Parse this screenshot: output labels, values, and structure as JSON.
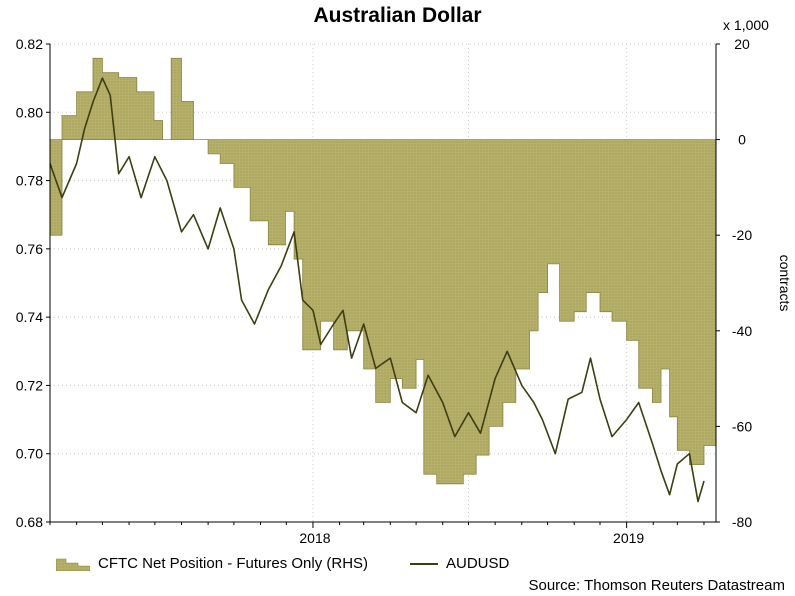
{
  "chart_data": {
    "title": "Australian Dollar",
    "left_axis": {
      "min": 0.68,
      "max": 0.82,
      "ticks": [
        "0.68",
        "0.70",
        "0.72",
        "0.74",
        "0.76",
        "0.78",
        "0.80",
        "0.82"
      ]
    },
    "right_axis": {
      "min": -80,
      "max": 20,
      "ticks": [
        "-80",
        "-60",
        "-40",
        "-20",
        "0",
        "20"
      ],
      "label": "contracts",
      "multiplier_label": "x 1,000"
    },
    "x_axis": {
      "type": "date",
      "start": "2017-03",
      "end": "2019-04",
      "tick_labels": [
        "2018",
        "2019"
      ]
    },
    "grid": "dotted",
    "legend_position": "bottom-left",
    "colors": {
      "area_fill": "#b5b06a",
      "area_stroke": "#8a8440",
      "line": "#3c3f12"
    },
    "series": [
      {
        "name": "CFTC Net Position - Futures Only (RHS)",
        "type": "area",
        "axis": "right",
        "points": [
          [
            "2017-03-01",
            0
          ],
          [
            "2017-03-01",
            -20
          ],
          [
            "2017-03-15",
            5
          ],
          [
            "2017-04-01",
            10
          ],
          [
            "2017-04-20",
            17
          ],
          [
            "2017-05-01",
            14
          ],
          [
            "2017-05-20",
            13
          ],
          [
            "2017-06-10",
            10
          ],
          [
            "2017-06-30",
            4
          ],
          [
            "2017-07-10",
            0
          ],
          [
            "2017-07-20",
            17
          ],
          [
            "2017-08-01",
            8
          ],
          [
            "2017-08-15",
            0
          ],
          [
            "2017-09-01",
            -3
          ],
          [
            "2017-09-15",
            -5
          ],
          [
            "2017-10-01",
            -10
          ],
          [
            "2017-10-20",
            -17
          ],
          [
            "2017-11-10",
            -22
          ],
          [
            "2017-11-30",
            -15
          ],
          [
            "2017-12-10",
            -25
          ],
          [
            "2017-12-20",
            -44
          ],
          [
            "2018-01-10",
            -38
          ],
          [
            "2018-01-25",
            -44
          ],
          [
            "2018-02-10",
            -40
          ],
          [
            "2018-03-01",
            -48
          ],
          [
            "2018-03-15",
            -55
          ],
          [
            "2018-04-01",
            -50
          ],
          [
            "2018-04-15",
            -52
          ],
          [
            "2018-05-01",
            -46
          ],
          [
            "2018-05-10",
            -70
          ],
          [
            "2018-05-25",
            -72
          ],
          [
            "2018-06-10",
            -72
          ],
          [
            "2018-06-25",
            -70
          ],
          [
            "2018-07-10",
            -66
          ],
          [
            "2018-07-25",
            -60
          ],
          [
            "2018-08-10",
            -55
          ],
          [
            "2018-08-25",
            -48
          ],
          [
            "2018-09-10",
            -40
          ],
          [
            "2018-09-20",
            -32
          ],
          [
            "2018-10-01",
            -26
          ],
          [
            "2018-10-15",
            -38
          ],
          [
            "2018-11-01",
            -36
          ],
          [
            "2018-11-15",
            -32
          ],
          [
            "2018-12-01",
            -36
          ],
          [
            "2018-12-15",
            -38
          ],
          [
            "2019-01-01",
            -42
          ],
          [
            "2019-01-15",
            -52
          ],
          [
            "2019-01-31",
            -55
          ],
          [
            "2019-02-10",
            -48
          ],
          [
            "2019-02-20",
            -58
          ],
          [
            "2019-03-01",
            -65
          ],
          [
            "2019-03-15",
            -68
          ],
          [
            "2019-04-01",
            -64
          ]
        ]
      },
      {
        "name": "AUDUSD",
        "type": "line",
        "axis": "left",
        "points": [
          [
            "2017-03-01",
            0.785
          ],
          [
            "2017-03-15",
            0.775
          ],
          [
            "2017-04-01",
            0.785
          ],
          [
            "2017-04-10",
            0.795
          ],
          [
            "2017-04-20",
            0.803
          ],
          [
            "2017-05-01",
            0.81
          ],
          [
            "2017-05-10",
            0.805
          ],
          [
            "2017-05-20",
            0.782
          ],
          [
            "2017-06-01",
            0.787
          ],
          [
            "2017-06-15",
            0.775
          ],
          [
            "2017-07-01",
            0.787
          ],
          [
            "2017-07-15",
            0.78
          ],
          [
            "2017-08-01",
            0.765
          ],
          [
            "2017-08-15",
            0.77
          ],
          [
            "2017-09-01",
            0.76
          ],
          [
            "2017-09-15",
            0.772
          ],
          [
            "2017-10-01",
            0.76
          ],
          [
            "2017-10-10",
            0.745
          ],
          [
            "2017-10-25",
            0.738
          ],
          [
            "2017-11-10",
            0.748
          ],
          [
            "2017-11-25",
            0.755
          ],
          [
            "2017-12-10",
            0.765
          ],
          [
            "2017-12-20",
            0.745
          ],
          [
            "2018-01-01",
            0.742
          ],
          [
            "2018-01-10",
            0.732
          ],
          [
            "2018-01-25",
            0.738
          ],
          [
            "2018-02-05",
            0.742
          ],
          [
            "2018-02-15",
            0.728
          ],
          [
            "2018-03-01",
            0.738
          ],
          [
            "2018-03-15",
            0.725
          ],
          [
            "2018-04-01",
            0.728
          ],
          [
            "2018-04-15",
            0.715
          ],
          [
            "2018-05-01",
            0.712
          ],
          [
            "2018-05-15",
            0.723
          ],
          [
            "2018-06-01",
            0.715
          ],
          [
            "2018-06-15",
            0.705
          ],
          [
            "2018-07-01",
            0.712
          ],
          [
            "2018-07-15",
            0.706
          ],
          [
            "2018-08-01",
            0.722
          ],
          [
            "2018-08-15",
            0.73
          ],
          [
            "2018-09-01",
            0.72
          ],
          [
            "2018-09-15",
            0.715
          ],
          [
            "2018-09-25",
            0.71
          ],
          [
            "2018-10-10",
            0.7
          ],
          [
            "2018-10-25",
            0.716
          ],
          [
            "2018-11-10",
            0.718
          ],
          [
            "2018-11-20",
            0.728
          ],
          [
            "2018-12-01",
            0.716
          ],
          [
            "2018-12-15",
            0.705
          ],
          [
            "2019-01-01",
            0.71
          ],
          [
            "2019-01-15",
            0.715
          ],
          [
            "2019-01-31",
            0.703
          ],
          [
            "2019-02-10",
            0.695
          ],
          [
            "2019-02-20",
            0.688
          ],
          [
            "2019-03-01",
            0.697
          ],
          [
            "2019-03-15",
            0.7
          ],
          [
            "2019-03-25",
            0.686
          ],
          [
            "2019-04-01",
            0.692
          ]
        ]
      }
    ]
  },
  "legend": {
    "cftc_label": "CFTC Net Position - Futures Only (RHS)",
    "aud_label": "AUDUSD"
  },
  "source": "Source: Thomson Reuters Datastream"
}
